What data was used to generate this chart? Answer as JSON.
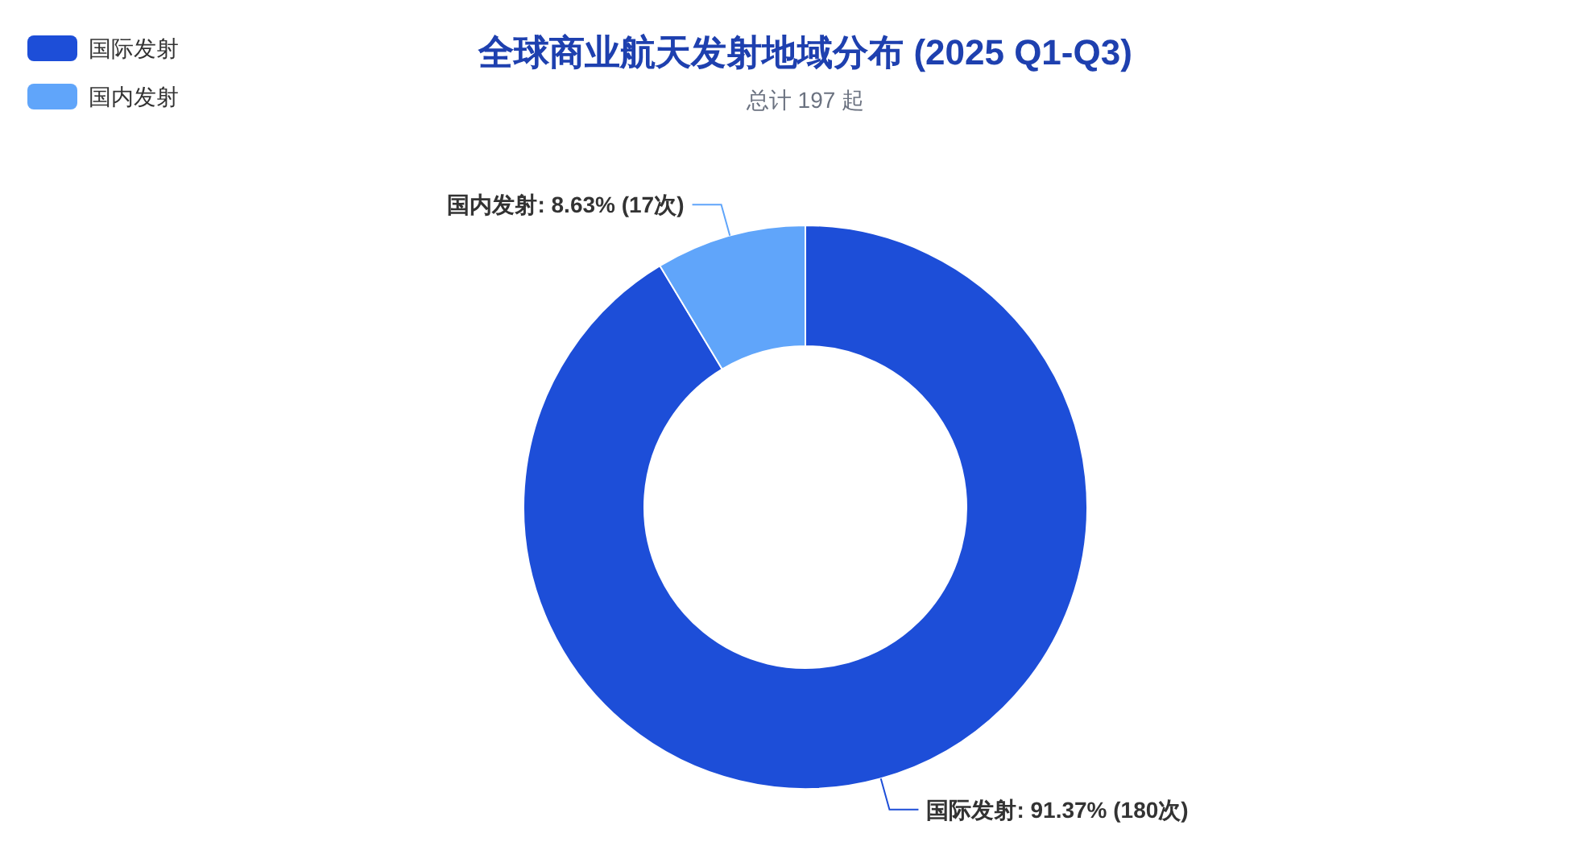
{
  "chart_data": {
    "type": "donut",
    "title": "全球商业航天发射地域分布 (2025 Q1-Q3)",
    "subtitle": "总计 197 起",
    "categories": [
      "国际发射",
      "国内发射"
    ],
    "values": [
      180,
      17
    ],
    "colors": [
      "#1d4ed8",
      "#60a5fa"
    ],
    "value_labels": [
      "国际发射: 91.37% (180次)",
      "国内发射: 8.63% (17次)"
    ],
    "legend": "top left"
  }
}
